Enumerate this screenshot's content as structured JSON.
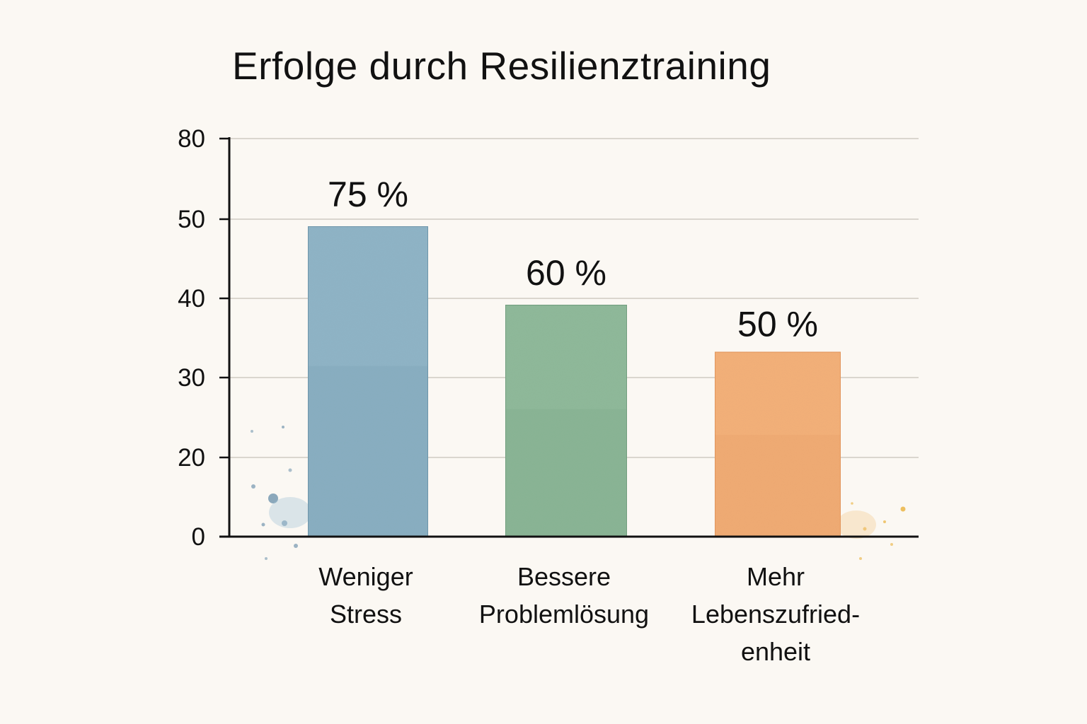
{
  "chart_data": {
    "type": "bar",
    "title": "Erfolge durch Resilienztraining",
    "xlabel": "",
    "ylabel": "",
    "y_tick_labels": [
      "0",
      "20",
      "30",
      "40",
      "50",
      "80"
    ],
    "grid": true,
    "legend": "none",
    "categories": [
      [
        "Weniger",
        "Stress"
      ],
      [
        "Bessere",
        "Problemlösung"
      ],
      [
        "Mehr",
        "Lebenszufried-",
        "enheit"
      ]
    ],
    "values": [
      75,
      60,
      50
    ],
    "data_labels": [
      "75 %",
      "60 %",
      "50 %"
    ],
    "colors": [
      "#8fb4c6",
      "#8fb99a",
      "#f3b079"
    ],
    "border_colors": [
      "#6f97ac",
      "#74a080",
      "#e3975e"
    ]
  }
}
